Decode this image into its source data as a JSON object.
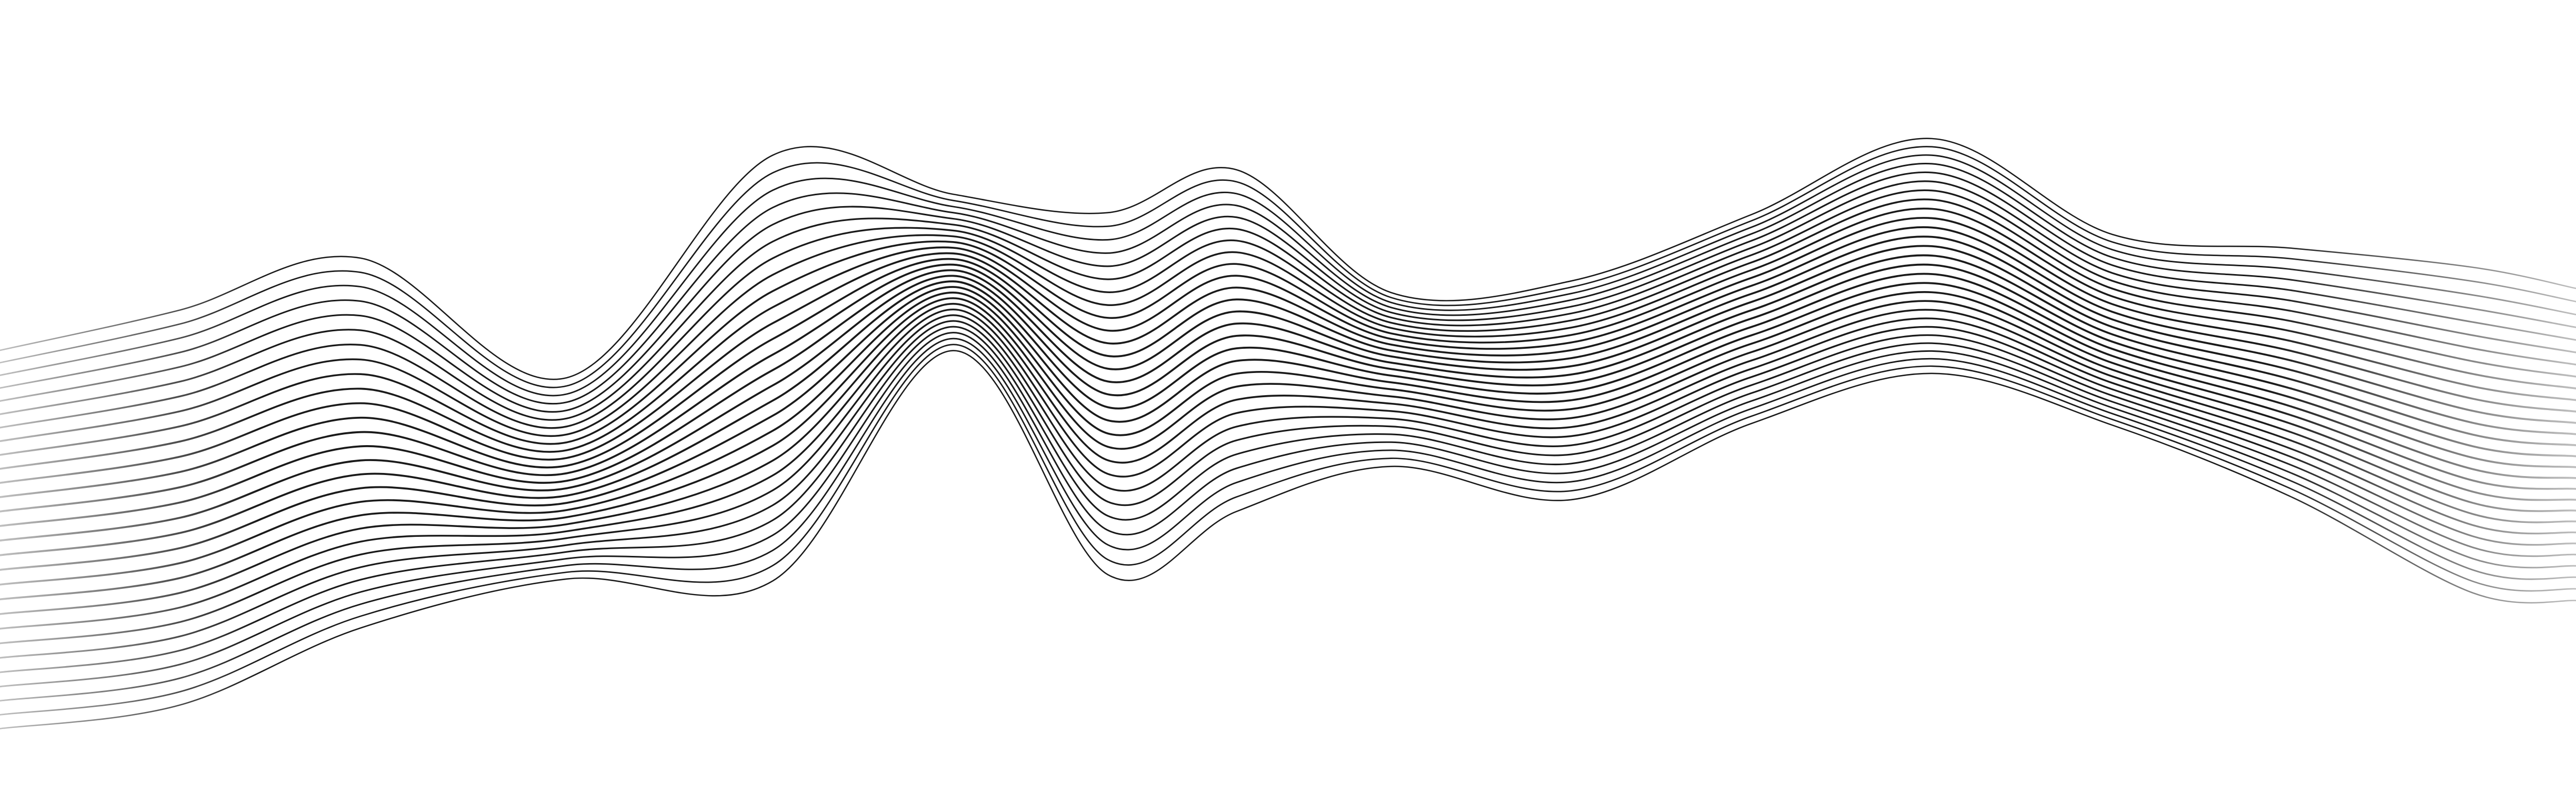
{
  "artwork": {
    "subject": "wave-lines",
    "background_color": "#ffffff",
    "line_color": "#000000",
    "line_count": 28,
    "edges_fade_to_light_gray": true
  }
}
